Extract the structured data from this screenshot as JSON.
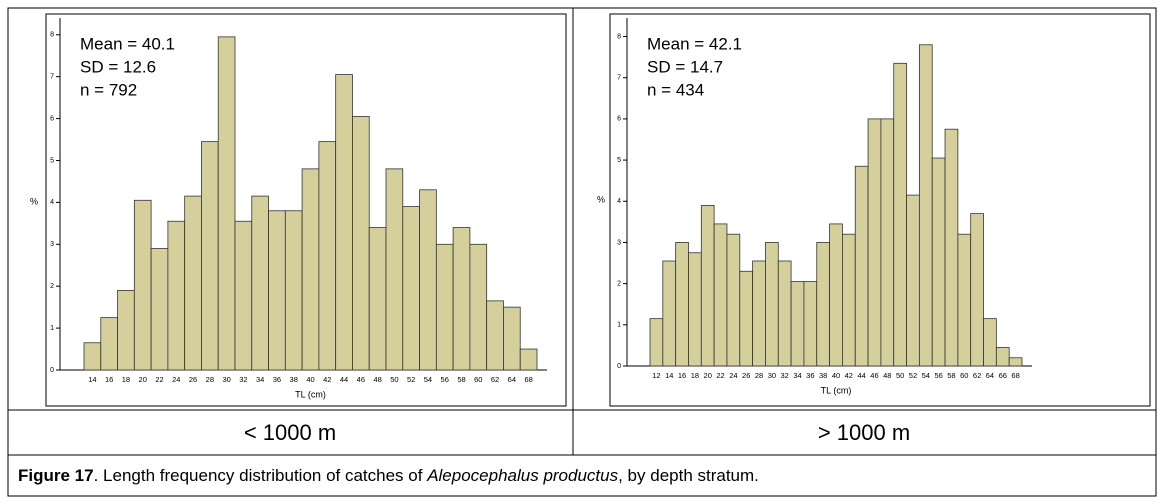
{
  "chart_data": [
    {
      "type": "bar",
      "annotations": [
        "Mean = 40.1",
        "SD = 12.6",
        "n = 792"
      ],
      "x_label": "TL (cm)",
      "y_label": "%",
      "categories": [
        "14",
        "16",
        "18",
        "20",
        "22",
        "24",
        "26",
        "28",
        "30",
        "32",
        "34",
        "36",
        "38",
        "40",
        "42",
        "44",
        "46",
        "48",
        "50",
        "52",
        "54",
        "56",
        "58",
        "60",
        "62",
        "64",
        "68"
      ],
      "values": [
        0.65,
        1.25,
        1.9,
        4.05,
        2.9,
        3.55,
        4.15,
        5.45,
        7.95,
        3.55,
        4.15,
        3.8,
        3.8,
        4.8,
        5.45,
        7.05,
        6.05,
        3.4,
        4.8,
        3.9,
        4.3,
        3.0,
        3.4,
        3.0,
        1.65,
        1.5,
        0.5
      ],
      "color": "#d5cf9c",
      "ylim": [
        0,
        8.4
      ],
      "yticks": [
        0,
        1,
        2,
        3,
        4,
        5,
        6,
        7,
        8
      ]
    },
    {
      "type": "bar",
      "annotations": [
        "Mean = 42.1",
        "SD = 14.7",
        "n = 434"
      ],
      "x_label": "TL (cm)",
      "y_label": "%",
      "categories": [
        "12",
        "14",
        "16",
        "18",
        "20",
        "22",
        "24",
        "26",
        "28",
        "30",
        "32",
        "34",
        "36",
        "38",
        "40",
        "42",
        "44",
        "46",
        "48",
        "50",
        "52",
        "54",
        "56",
        "58",
        "60",
        "62",
        "64",
        "66",
        "68"
      ],
      "values": [
        1.15,
        2.55,
        3.0,
        2.75,
        3.9,
        3.45,
        3.2,
        2.3,
        2.55,
        3.0,
        2.55,
        2.05,
        2.05,
        3.0,
        3.45,
        3.2,
        4.85,
        6.0,
        6.0,
        7.35,
        4.15,
        7.8,
        5.05,
        5.75,
        3.2,
        3.7,
        1.15,
        0.45,
        0.2
      ],
      "color": "#d5cf9c",
      "ylim": [
        0,
        8.45
      ],
      "yticks": [
        0,
        1,
        2,
        3,
        4,
        5,
        6,
        7,
        8
      ]
    }
  ],
  "strata": [
    "< 1000 m",
    "> 1000 m"
  ],
  "caption": {
    "label": "Figure 17",
    "text": ". Length frequency distribution of catches of ",
    "species": "Alepocephalus productus",
    "end": ", by depth stratum."
  }
}
